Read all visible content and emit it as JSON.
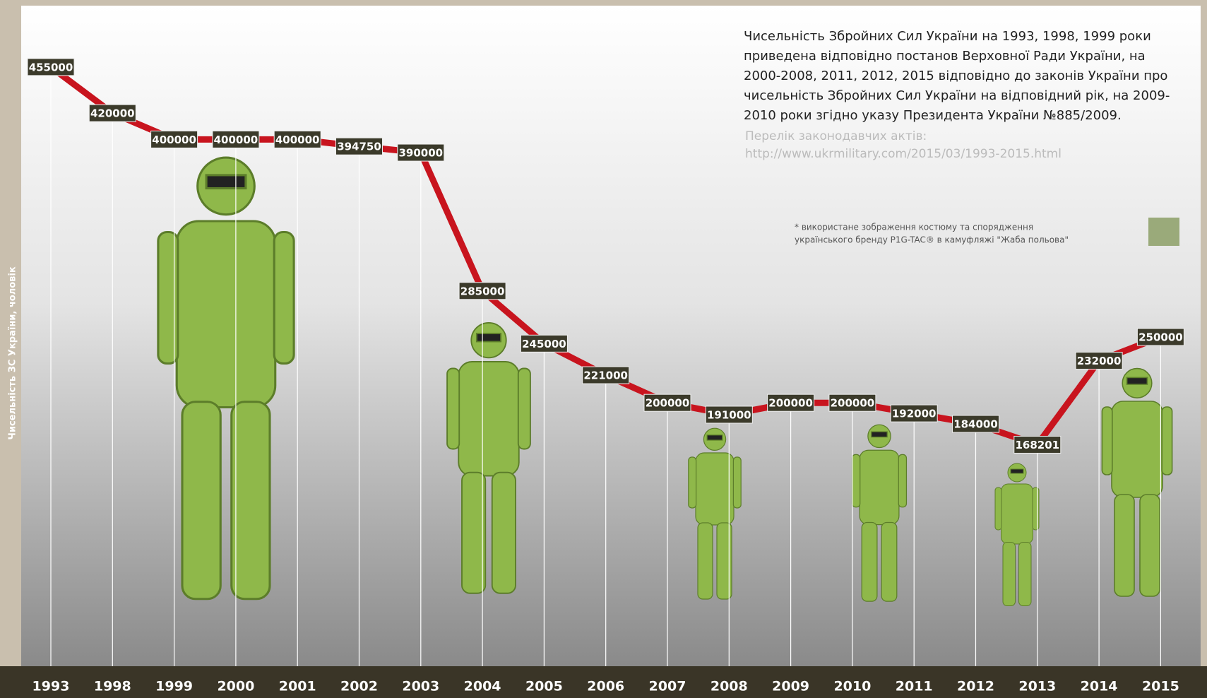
{
  "chart_data": {
    "type": "line",
    "y_label": "Чисельність ЗС України, чоловік",
    "categories": [
      "1993",
      "1998",
      "1999",
      "2000",
      "2001",
      "2002",
      "2003",
      "2004",
      "2005",
      "2006",
      "2007",
      "2008",
      "2009",
      "2010",
      "2011",
      "2012",
      "2013",
      "2014",
      "2015"
    ],
    "values": [
      455000,
      420000,
      400000,
      400000,
      400000,
      394750,
      390000,
      285000,
      245000,
      221000,
      200000,
      191000,
      200000,
      200000,
      192000,
      184000,
      168201,
      232000,
      250000
    ],
    "color": "#c8141e",
    "ylim": [
      0,
      500000
    ],
    "note": [
      "Чисельність Збройних Сил України на 1993, 1998, 1999 роки",
      "приведена відповідно постанов Верховної Ради України, на",
      "2000-2008, 2011, 2012, 2015 відповідно до законів України про",
      "чисельність Збройних Сил України на відповідний рік, на 2009-",
      "2010 роки згідно указу Президента України №885/2009."
    ],
    "sources_label": "Перелік законодавчих актів:",
    "sources_url": "http://www.ukrmilitary.com/2015/03/1993-2015.html",
    "footnote": [
      "* використане зображення костюму та спорядження",
      "українського бренду P1G-TAC® в камуфляжі \"Жаба польова\""
    ]
  }
}
